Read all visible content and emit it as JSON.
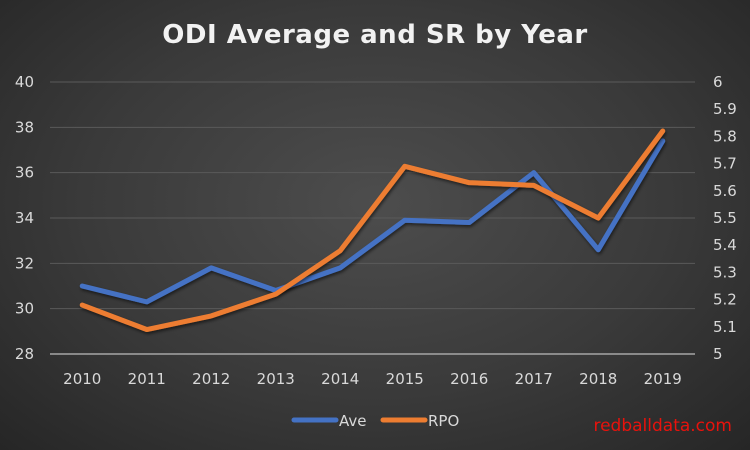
{
  "chart_data": {
    "type": "line",
    "title": "ODI Average and SR by Year",
    "categories": [
      "2010",
      "2011",
      "2012",
      "2013",
      "2014",
      "2015",
      "2016",
      "2017",
      "2018",
      "2019"
    ],
    "series": [
      {
        "name": "Ave",
        "axis": "left",
        "color": "#4472c4",
        "values": [
          31.0,
          30.3,
          31.8,
          30.8,
          31.8,
          33.9,
          33.8,
          36.0,
          32.6,
          37.4
        ]
      },
      {
        "name": "RPO",
        "axis": "right",
        "color": "#ed7d31",
        "values": [
          5.18,
          5.09,
          5.14,
          5.22,
          5.38,
          5.69,
          5.63,
          5.62,
          5.5,
          5.82
        ]
      }
    ],
    "y_left": {
      "range": [
        28,
        40
      ],
      "ticks": [
        "28",
        "30",
        "32",
        "34",
        "36",
        "38",
        "40"
      ]
    },
    "y_right": {
      "range": [
        5,
        6
      ],
      "ticks": [
        "5",
        "5.1",
        "5.2",
        "5.3",
        "5.4",
        "5.5",
        "5.6",
        "5.7",
        "5.8",
        "5.9",
        "6"
      ]
    },
    "xlabel": "",
    "ylabel": "",
    "grid": true,
    "legend": "bottom"
  },
  "watermark": "redballdata.com"
}
